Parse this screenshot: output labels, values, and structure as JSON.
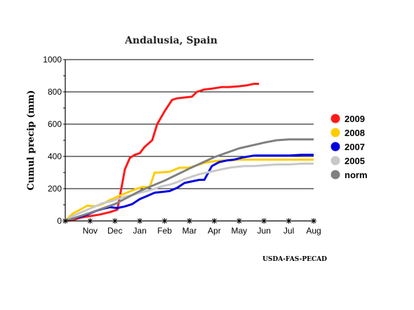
{
  "chart_data": {
    "type": "line",
    "title": "Andalusia, Spain",
    "ylabel": "Cumul precip (mm)",
    "xlabel": "",
    "ylim": [
      0,
      1000
    ],
    "yticks": [
      0,
      200,
      400,
      600,
      800,
      1000
    ],
    "x_months": [
      "Nov",
      "Dec",
      "Jan",
      "Feb",
      "Mar",
      "Apr",
      "May",
      "Jun",
      "Jul",
      "Aug"
    ],
    "x_range_months": [
      0,
      10
    ],
    "grid": "horizontal",
    "legend_position": "right",
    "series": [
      {
        "name": "2009",
        "color": "#ff1a1a",
        "x": [
          0,
          0.3,
          0.6,
          1.0,
          1.4,
          1.8,
          2.1,
          2.4,
          2.6,
          2.8,
          3.0,
          3.2,
          3.5,
          3.7,
          4.0,
          4.3,
          4.5,
          4.8,
          5.1,
          5.3,
          5.6,
          5.9,
          6.1,
          6.3,
          6.6,
          7.0,
          7.3,
          7.6,
          7.8
        ],
        "y": [
          0,
          5,
          20,
          30,
          40,
          55,
          70,
          320,
          390,
          410,
          420,
          460,
          500,
          600,
          680,
          750,
          760,
          765,
          770,
          800,
          815,
          820,
          825,
          830,
          830,
          835,
          840,
          850,
          850
        ]
      },
      {
        "name": "2008",
        "color": "#ffcc00",
        "x": [
          0,
          0.3,
          0.6,
          0.9,
          1.2,
          1.5,
          1.8,
          2.1,
          2.4,
          2.8,
          3.1,
          3.4,
          3.6,
          3.8,
          4.2,
          4.6,
          5.0,
          5.3,
          5.6,
          6.0,
          6.3,
          6.6,
          7.0,
          7.5,
          8.0,
          8.5,
          9.0,
          9.5,
          10.0
        ],
        "y": [
          0,
          45,
          70,
          95,
          90,
          105,
          130,
          150,
          170,
          195,
          210,
          210,
          300,
          300,
          305,
          330,
          330,
          345,
          360,
          370,
          375,
          375,
          380,
          380,
          380,
          380,
          380,
          380,
          380
        ]
      },
      {
        "name": "2007",
        "color": "#0000dd",
        "x": [
          0,
          0.3,
          0.6,
          0.9,
          1.2,
          1.5,
          1.8,
          2.1,
          2.4,
          2.7,
          3.0,
          3.3,
          3.6,
          3.9,
          4.2,
          4.5,
          4.8,
          5.1,
          5.4,
          5.6,
          5.9,
          6.2,
          6.5,
          6.8,
          7.2,
          7.6,
          8.0,
          8.5,
          9.0,
          9.5,
          10.0
        ],
        "y": [
          0,
          15,
          25,
          40,
          60,
          75,
          85,
          80,
          90,
          105,
          135,
          155,
          175,
          180,
          185,
          205,
          235,
          245,
          255,
          255,
          340,
          365,
          375,
          380,
          395,
          405,
          405,
          405,
          405,
          410,
          410
        ]
      },
      {
        "name": "2005",
        "color": "#c8c8c8",
        "x": [
          0,
          0.3,
          0.6,
          0.9,
          1.2,
          1.5,
          1.8,
          2.1,
          2.4,
          2.7,
          3.0,
          3.3,
          3.6,
          3.9,
          4.2,
          4.5,
          4.8,
          5.1,
          5.4,
          5.7,
          6.0,
          6.3,
          6.6,
          6.9,
          7.2,
          7.6,
          8.0,
          8.5,
          9.0,
          9.5,
          10.0
        ],
        "y": [
          0,
          30,
          50,
          70,
          90,
          110,
          120,
          135,
          150,
          160,
          175,
          185,
          200,
          215,
          225,
          240,
          260,
          275,
          290,
          300,
          310,
          320,
          330,
          335,
          340,
          340,
          345,
          350,
          350,
          355,
          355
        ]
      },
      {
        "name": "norm",
        "color": "#808080",
        "x": [
          0,
          1,
          2,
          3,
          4,
          5,
          6,
          7,
          8,
          8.5,
          9,
          10
        ],
        "y": [
          0,
          50,
          105,
          185,
          250,
          325,
          395,
          450,
          485,
          500,
          505,
          505
        ]
      }
    ]
  },
  "credit": "USDA-FAS-PECAD"
}
